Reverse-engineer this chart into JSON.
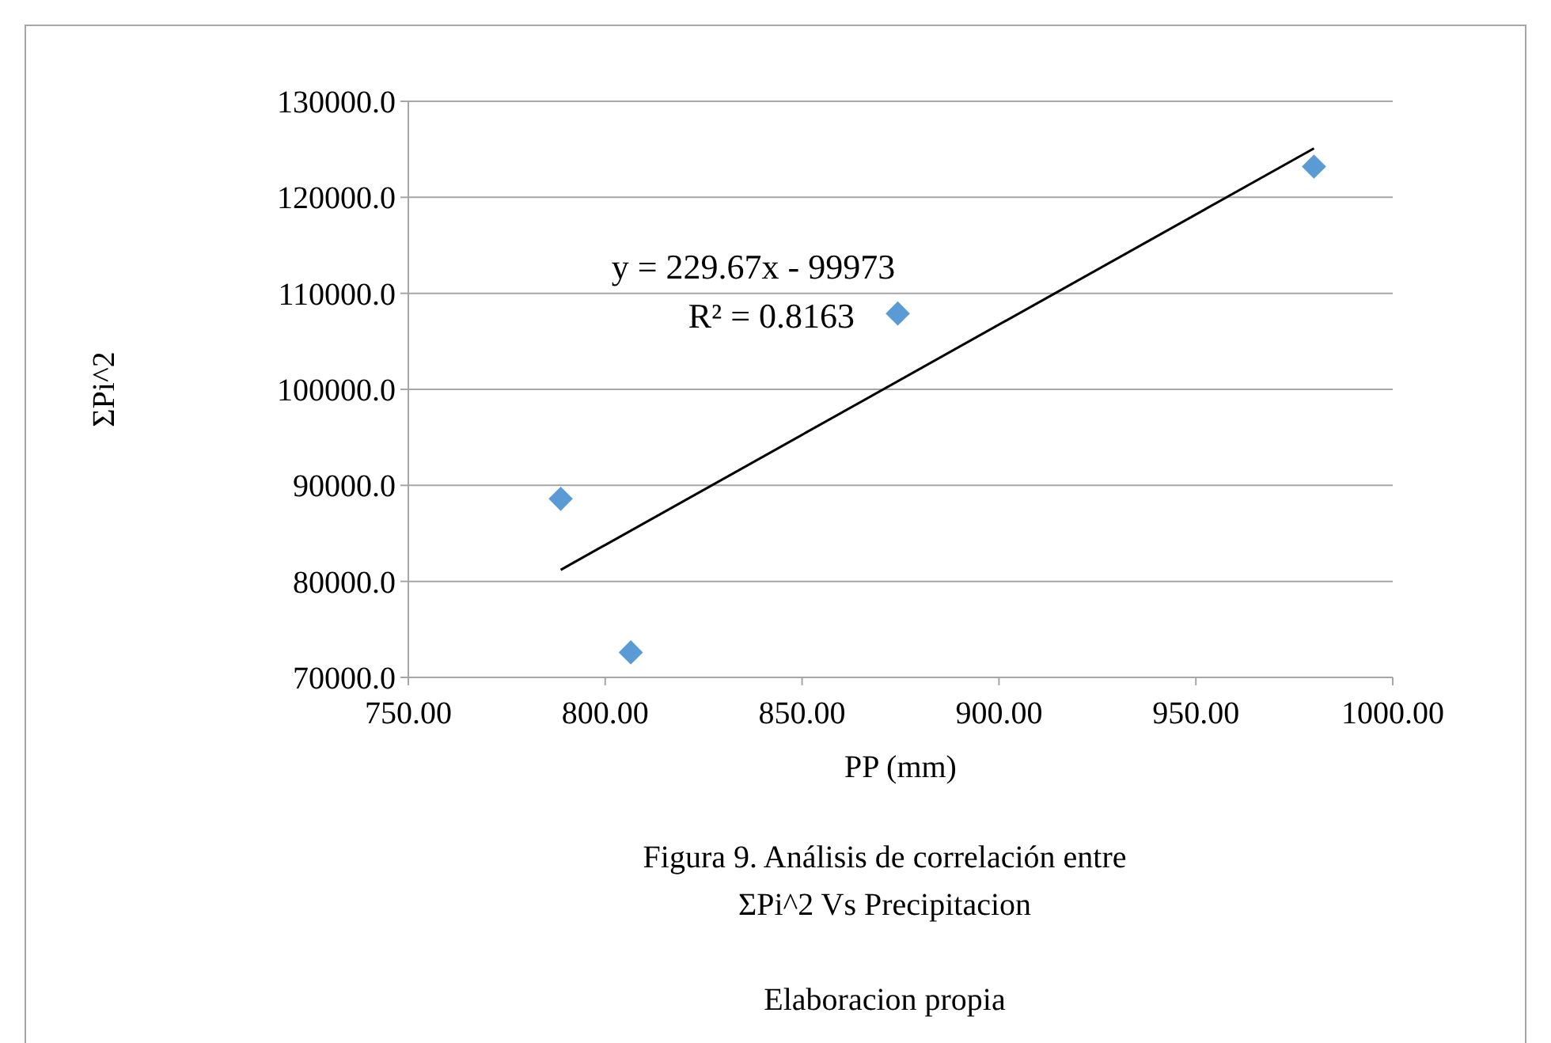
{
  "chart_data": {
    "type": "scatter",
    "xlabel": "PP (mm)",
    "ylabel": "ΣPi^2",
    "xlim": [
      750,
      1000
    ],
    "xticks": [
      {
        "value": 750,
        "label": "750.00"
      },
      {
        "value": 800,
        "label": "800.00"
      },
      {
        "value": 850,
        "label": "850.00"
      },
      {
        "value": 900,
        "label": "900.00"
      },
      {
        "value": 950,
        "label": "950.00"
      },
      {
        "value": 1000,
        "label": "1000.00"
      }
    ],
    "ylim": [
      70000,
      130000
    ],
    "yticks": [
      {
        "value": 70000,
        "label": "70000.0"
      },
      {
        "value": 80000,
        "label": "80000.0"
      },
      {
        "value": 90000,
        "label": "90000.0"
      },
      {
        "value": 100000,
        "label": "100000.0"
      },
      {
        "value": 110000,
        "label": "110000.0"
      },
      {
        "value": 120000,
        "label": "120000.0"
      },
      {
        "value": 130000,
        "label": "130000.0"
      }
    ],
    "grid": "y",
    "marker": "diamond",
    "series": [
      {
        "type": "scatter",
        "color": "#5b9bd5",
        "x": [
          788.7,
          806.5,
          874.3,
          980.0
        ],
        "values": [
          88600,
          72600,
          107900,
          123200
        ]
      },
      {
        "type": "line",
        "color": "#000000",
        "marker": "none",
        "x": [
          788.7,
          980.0
        ],
        "values": [
          81200,
          125100
        ]
      }
    ],
    "annotations": [
      "y = 229.67x - 99973",
      "R² = 0.8163",
      "Figura 9. Análisis de correlación entre",
      "ΣPi^2 Vs Precipitacion",
      "Elaboracion propia"
    ]
  }
}
